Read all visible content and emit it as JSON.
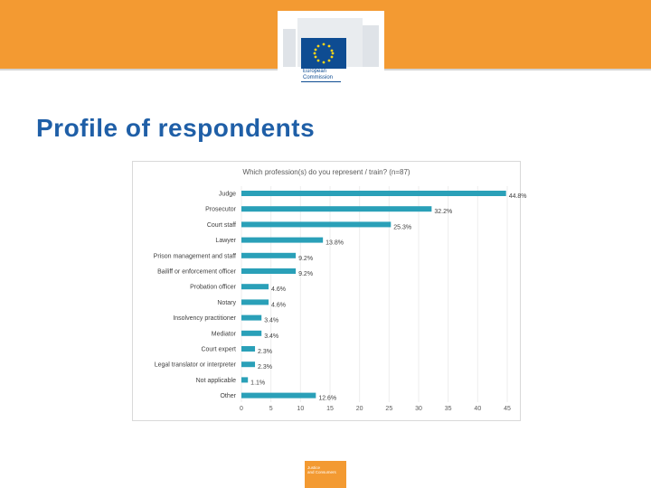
{
  "branding": {
    "logo_text": "European\nCommission",
    "footer_text": "Justice\nand Consumers"
  },
  "slide": {
    "title": "Profile of respondents"
  },
  "colors": {
    "header": "#f39a32",
    "title": "#1f5fa7",
    "bar": "#2aa0b8"
  },
  "chart_data": {
    "type": "bar",
    "orientation": "horizontal",
    "title": "Which profession(s) do you represent / train? (n=87)",
    "categories": [
      "Judge",
      "Prosecutor",
      "Court staff",
      "Lawyer",
      "Prison management and staff",
      "Bailiff or enforcement officer",
      "Probation officer",
      "Notary",
      "Insolvency practitioner",
      "Mediator",
      "Court expert",
      "Legal translator or interpreter",
      "Not applicable",
      "Other"
    ],
    "values": [
      44.8,
      32.2,
      25.3,
      13.8,
      9.2,
      9.2,
      4.6,
      4.6,
      3.4,
      3.4,
      2.3,
      2.3,
      1.1,
      12.6
    ],
    "labels": [
      "44.8%",
      "32.2%",
      "25.3%",
      "13.8%",
      "9.2%",
      "9.2%",
      "4.6%",
      "4.6%",
      "3.4%",
      "3.4%",
      "2.3%",
      "2.3%",
      "1.1%",
      "12.6%"
    ],
    "xlim": [
      0,
      45
    ],
    "xticks": [
      "0",
      "5",
      "10",
      "15",
      "20",
      "25",
      "30",
      "35",
      "40",
      "45"
    ],
    "xlabel": "",
    "ylabel": ""
  }
}
